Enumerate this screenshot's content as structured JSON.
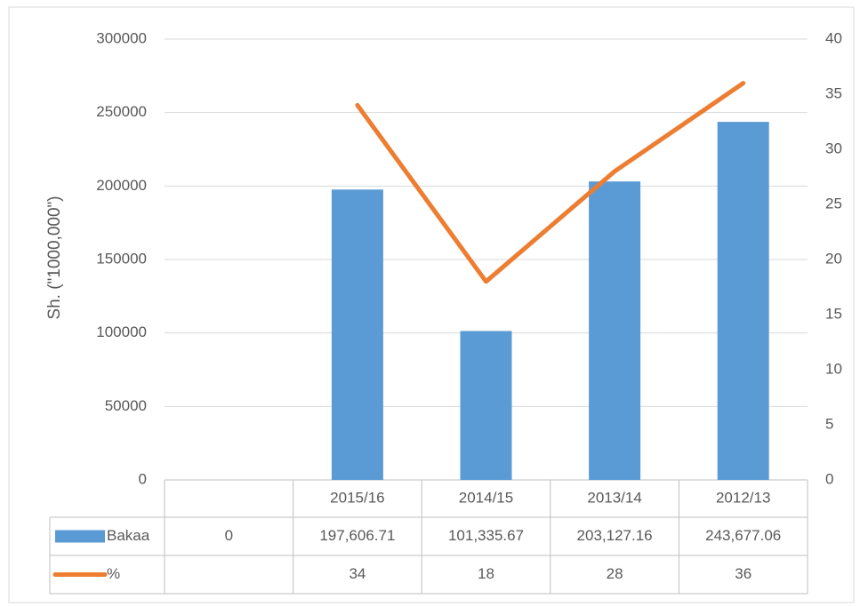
{
  "chart_data": {
    "type": "bar",
    "y_label": "Sh. (\"1000,000\")",
    "categories": [
      null,
      "2015/16",
      "2014/15",
      "2013/14",
      "2012/13"
    ],
    "series": [
      {
        "name": "Bakaa",
        "color": "#5b9bd5",
        "type": "bar",
        "values": [
          0,
          197606.71,
          101335.67,
          203127.16,
          243677.06
        ],
        "value_labels": [
          "0",
          "197,606.71",
          "101,335.67",
          "203,127.16",
          "243,677.06"
        ]
      },
      {
        "name": "%",
        "color": "#ed7d31",
        "type": "line",
        "axis": "y2",
        "values": [
          null,
          34,
          18,
          28,
          36
        ]
      }
    ],
    "ylim": [
      0,
      300000
    ],
    "yticks": [
      0,
      50000,
      100000,
      150000,
      200000,
      250000,
      300000
    ],
    "y2lim": [
      0,
      40
    ],
    "y2ticks": [
      0,
      5,
      10,
      15,
      20,
      25,
      30,
      35,
      40
    ],
    "grid": true,
    "data_table": true
  }
}
